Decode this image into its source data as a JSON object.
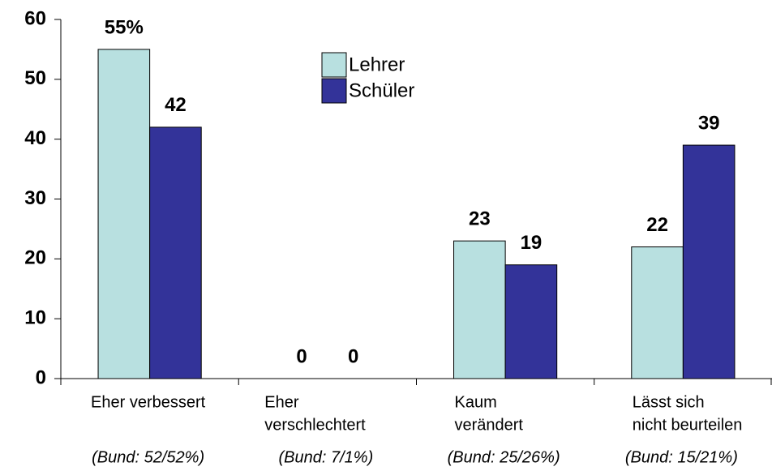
{
  "chart_data": {
    "type": "bar",
    "categories": [
      [
        "Eher verbessert"
      ],
      [
        "Eher",
        "verschlechtert"
      ],
      [
        "Kaum",
        "verändert"
      ],
      [
        "Lässt sich",
        "nicht beurteilen"
      ]
    ],
    "category_notes": [
      "(Bund: 52/52%)",
      "(Bund: 7/1%)",
      "(Bund: 25/26%)",
      "(Bund: 15/21%)"
    ],
    "series": [
      {
        "name": "Lehrer",
        "color": "#b8e0e0",
        "values": [
          55,
          0,
          23,
          22
        ],
        "value_labels": [
          "55%",
          "0",
          "23",
          "22"
        ]
      },
      {
        "name": "Schüler",
        "color": "#333399",
        "values": [
          42,
          0,
          19,
          39
        ]
      }
    ],
    "ylim": [
      0,
      60
    ],
    "yticks": [
      0,
      10,
      20,
      30,
      40,
      50,
      60
    ],
    "grid": false,
    "legend": "top-center"
  }
}
